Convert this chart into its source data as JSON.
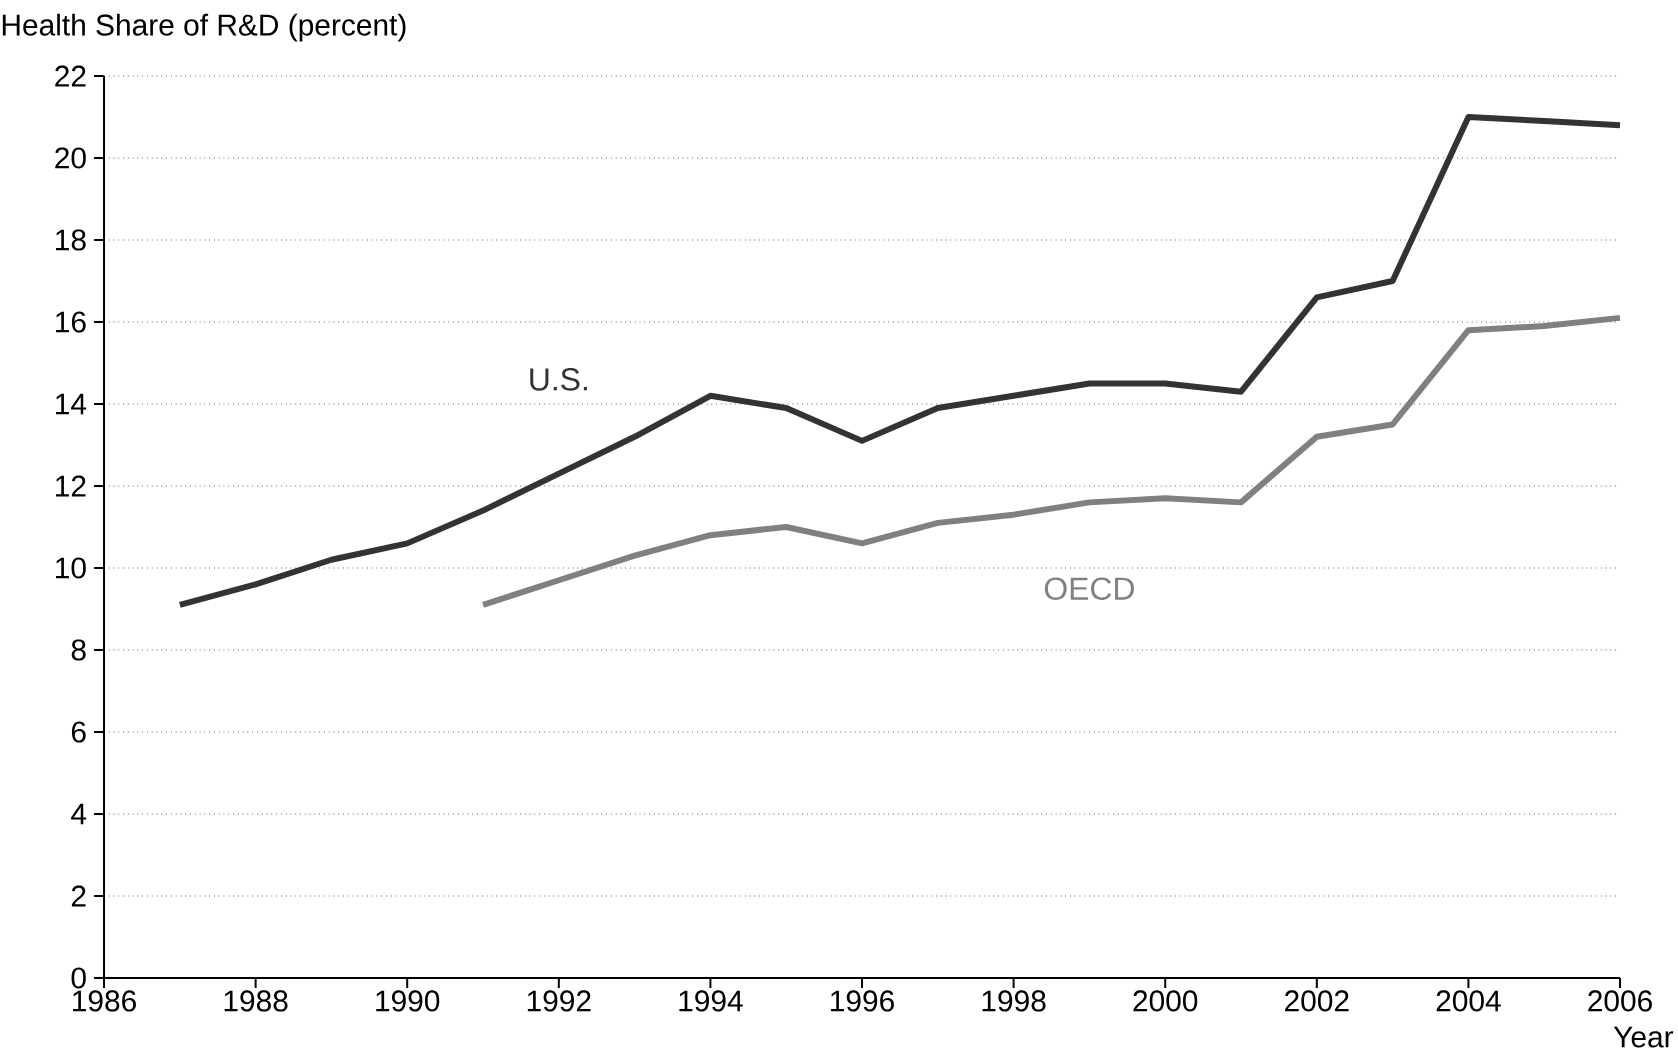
{
  "chart_data": {
    "type": "line",
    "ylabel": "Health Share of R&D (percent)",
    "xlabel": "Year",
    "xlim": [
      1986,
      2006
    ],
    "xticks": [
      1986,
      1988,
      1990,
      1992,
      1994,
      1996,
      1998,
      2000,
      2002,
      2004,
      2006
    ],
    "ylim": [
      0,
      22
    ],
    "yticks": [
      0,
      2,
      4,
      6,
      8,
      10,
      12,
      14,
      16,
      18,
      20,
      22
    ],
    "grid": "y",
    "marker": "none",
    "line_style": "solid",
    "series": [
      {
        "name": "U.S.",
        "color": "#333333",
        "x": [
          1987,
          1988,
          1989,
          1990,
          1991,
          1992,
          1993,
          1994,
          1995,
          1996,
          1997,
          1998,
          1999,
          2000,
          2001,
          2002,
          2003,
          2004,
          2005,
          2006
        ],
        "values": [
          9.1,
          9.6,
          10.2,
          10.6,
          11.4,
          12.3,
          13.2,
          14.2,
          13.9,
          13.1,
          13.9,
          14.2,
          14.5,
          14.5,
          14.3,
          16.6,
          17.0,
          21.0,
          20.9,
          20.8
        ]
      },
      {
        "name": "OECD",
        "color": "#808080",
        "x": [
          1991,
          1992,
          1993,
          1994,
          1995,
          1996,
          1997,
          1998,
          1999,
          2000,
          2001,
          2002,
          2003,
          2004,
          2005,
          2006
        ],
        "values": [
          9.1,
          9.7,
          10.3,
          10.8,
          11.0,
          10.6,
          11.1,
          11.3,
          11.6,
          11.7,
          11.6,
          13.2,
          13.5,
          15.8,
          15.9,
          16.1
        ]
      }
    ]
  }
}
